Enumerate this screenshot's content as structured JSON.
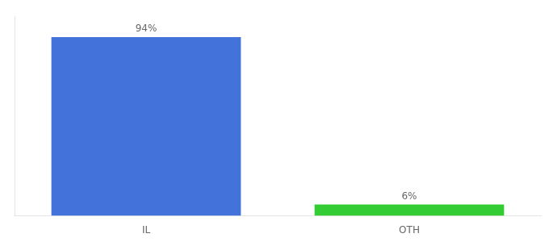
{
  "chart_data": {
    "type": "bar",
    "categories": [
      "IL",
      "OTH"
    ],
    "values": [
      94,
      6
    ],
    "value_labels": [
      "94%",
      "6%"
    ],
    "colors": [
      "#4472db",
      "#33cc33"
    ],
    "ylim": [
      0,
      105
    ],
    "data_labels": true,
    "tick_labels": "x",
    "grid": false
  }
}
